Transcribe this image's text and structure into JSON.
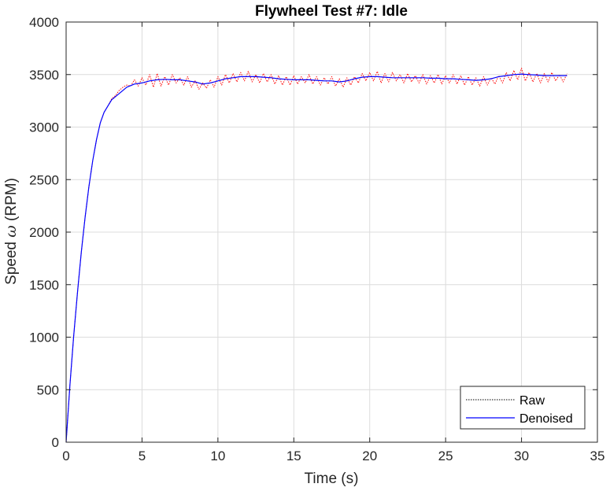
{
  "chart_data": {
    "type": "line",
    "title": "Flywheel Test #7: Idle",
    "xlabel": "Time (s)",
    "ylabel_prefix": "Speed ",
    "ylabel_symbol": "ω",
    "ylabel_suffix": " (RPM)",
    "xlim": [
      0,
      35
    ],
    "ylim": [
      0,
      4000
    ],
    "xticks": [
      0,
      5,
      10,
      15,
      20,
      25,
      30,
      35
    ],
    "yticks": [
      0,
      500,
      1000,
      1500,
      2000,
      2500,
      3000,
      3500,
      4000
    ],
    "grid": true,
    "legend_position": "bottom-right",
    "series": [
      {
        "name": "Raw",
        "color": "#ff0000",
        "style": "dotted",
        "x": [
          0,
          0.25,
          0.5,
          0.75,
          1,
          1.25,
          1.5,
          1.75,
          2,
          2.25,
          2.5,
          2.75,
          3,
          3.25,
          3.5,
          3.75,
          4,
          4.25,
          4.5,
          4.75,
          5,
          5.25,
          5.5,
          5.75,
          6,
          6.25,
          6.5,
          6.75,
          7,
          7.25,
          7.5,
          7.75,
          8,
          8.25,
          8.5,
          8.75,
          9,
          9.25,
          9.5,
          9.75,
          10,
          10.25,
          10.5,
          10.75,
          11,
          11.25,
          11.5,
          11.75,
          12,
          12.25,
          12.5,
          12.75,
          13,
          13.25,
          13.5,
          13.75,
          14,
          14.25,
          14.5,
          14.75,
          15,
          15.25,
          15.5,
          15.75,
          16,
          16.25,
          16.5,
          16.75,
          17,
          17.25,
          17.5,
          17.75,
          18,
          18.25,
          18.5,
          18.75,
          19,
          19.25,
          19.5,
          19.75,
          20,
          20.25,
          20.5,
          20.75,
          21,
          21.25,
          21.5,
          21.75,
          22,
          22.25,
          22.5,
          22.75,
          23,
          23.25,
          23.5,
          23.75,
          24,
          24.25,
          24.5,
          24.75,
          25,
          25.25,
          25.5,
          25.75,
          26,
          26.25,
          26.5,
          26.75,
          27,
          27.25,
          27.5,
          27.75,
          28,
          28.25,
          28.5,
          28.75,
          29,
          29.25,
          29.5,
          29.75,
          30,
          30.25,
          30.5,
          30.75,
          31,
          31.25,
          31.5,
          31.75,
          32,
          32.25,
          32.5,
          32.75,
          33
        ],
        "y": [
          0,
          540,
          1010,
          1430,
          1810,
          2140,
          2430,
          2680,
          2880,
          3040,
          3140,
          3200,
          3270,
          3300,
          3350,
          3380,
          3400,
          3390,
          3450,
          3390,
          3470,
          3400,
          3500,
          3380,
          3510,
          3390,
          3480,
          3400,
          3500,
          3420,
          3470,
          3400,
          3480,
          3380,
          3440,
          3360,
          3420,
          3370,
          3450,
          3380,
          3480,
          3400,
          3500,
          3420,
          3510,
          3430,
          3520,
          3440,
          3530,
          3430,
          3500,
          3420,
          3510,
          3430,
          3500,
          3410,
          3490,
          3400,
          3480,
          3400,
          3490,
          3410,
          3480,
          3420,
          3500,
          3410,
          3480,
          3400,
          3470,
          3410,
          3480,
          3390,
          3460,
          3380,
          3470,
          3400,
          3480,
          3420,
          3510,
          3440,
          3520,
          3440,
          3530,
          3420,
          3510,
          3430,
          3520,
          3440,
          3500,
          3420,
          3510,
          3430,
          3490,
          3420,
          3500,
          3410,
          3490,
          3420,
          3500,
          3410,
          3490,
          3420,
          3500,
          3410,
          3490,
          3400,
          3480,
          3400,
          3470,
          3390,
          3480,
          3400,
          3470,
          3410,
          3490,
          3420,
          3520,
          3440,
          3540,
          3450,
          3560,
          3440,
          3520,
          3430,
          3510,
          3420,
          3510,
          3430,
          3520,
          3440,
          3500,
          3430,
          3510
        ]
      },
      {
        "name": "Denoised",
        "color": "#0000ff",
        "style": "solid",
        "x": [
          0,
          0.25,
          0.5,
          0.75,
          1,
          1.25,
          1.5,
          1.75,
          2,
          2.25,
          2.5,
          2.75,
          3,
          3.25,
          3.5,
          3.75,
          4,
          4.5,
          5,
          5.5,
          6,
          6.5,
          7,
          7.5,
          8,
          8.5,
          9,
          9.5,
          10,
          10.5,
          11,
          11.5,
          12,
          12.5,
          13,
          13.5,
          14,
          14.5,
          15,
          15.5,
          16,
          16.5,
          17,
          17.5,
          18,
          18.5,
          19,
          19.5,
          20,
          20.5,
          21,
          21.5,
          22,
          22.5,
          23,
          23.5,
          24,
          24.5,
          25,
          25.5,
          26,
          26.5,
          27,
          27.5,
          28,
          28.5,
          29,
          29.5,
          30,
          30.5,
          31,
          31.5,
          32,
          32.5,
          33
        ],
        "y": [
          0,
          540,
          1010,
          1430,
          1810,
          2140,
          2430,
          2680,
          2880,
          3040,
          3140,
          3200,
          3260,
          3290,
          3320,
          3350,
          3380,
          3410,
          3420,
          3440,
          3450,
          3455,
          3450,
          3450,
          3440,
          3430,
          3410,
          3420,
          3440,
          3460,
          3470,
          3480,
          3480,
          3480,
          3475,
          3470,
          3460,
          3455,
          3450,
          3450,
          3450,
          3445,
          3440,
          3440,
          3430,
          3440,
          3460,
          3475,
          3480,
          3480,
          3475,
          3470,
          3470,
          3470,
          3470,
          3470,
          3465,
          3465,
          3460,
          3460,
          3455,
          3450,
          3445,
          3450,
          3460,
          3480,
          3490,
          3500,
          3505,
          3500,
          3495,
          3490,
          3490,
          3490,
          3490
        ]
      }
    ]
  }
}
